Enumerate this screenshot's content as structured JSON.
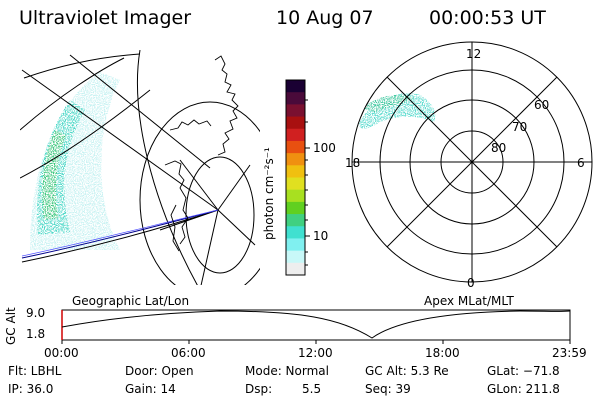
{
  "header": {
    "title": "Ultraviolet Imager",
    "date": "10 Aug 07",
    "time": "00:00:53 UT"
  },
  "colorbar": {
    "unit_label": "photon cm⁻²s⁻¹",
    "ticks": [
      "100",
      "10"
    ],
    "colors": [
      "#1a0033",
      "#4a0a3a",
      "#7a1030",
      "#a81010",
      "#d02020",
      "#e85010",
      "#f09010",
      "#f0c010",
      "#e0e020",
      "#a8e020",
      "#60d020",
      "#40d080",
      "#40e0d0",
      "#80f0f0",
      "#c8f8f8",
      "#eeeeee"
    ]
  },
  "left_map": {
    "label": "Geographic Lat/Lon"
  },
  "polar_plot": {
    "label": "Apex MLat/MLT",
    "mlt_labels": {
      "top": "12",
      "bottom": "0",
      "left": "18",
      "right": "6"
    },
    "lat_labels": [
      "60",
      "70",
      "80"
    ]
  },
  "timeline": {
    "ylabel": "GC Alt",
    "y_ticks": [
      "9.0",
      "1.8"
    ],
    "x_ticks": [
      "00:00",
      "06:00",
      "12:00",
      "18:00",
      "23:59"
    ]
  },
  "info": {
    "filter": "Flt: LBHL",
    "ip": "IP: 36.0",
    "door": "Door: Open",
    "gain": "Gain: 14",
    "mode": "Mode: Normal",
    "dsp_label": "Dsp:",
    "dsp_value": "5.5",
    "gc_alt": "GC Alt: 5.3 Re",
    "seq": "Seq: 39",
    "glat": "GLat: −71.8",
    "glon": "GLon: 211.8"
  }
}
